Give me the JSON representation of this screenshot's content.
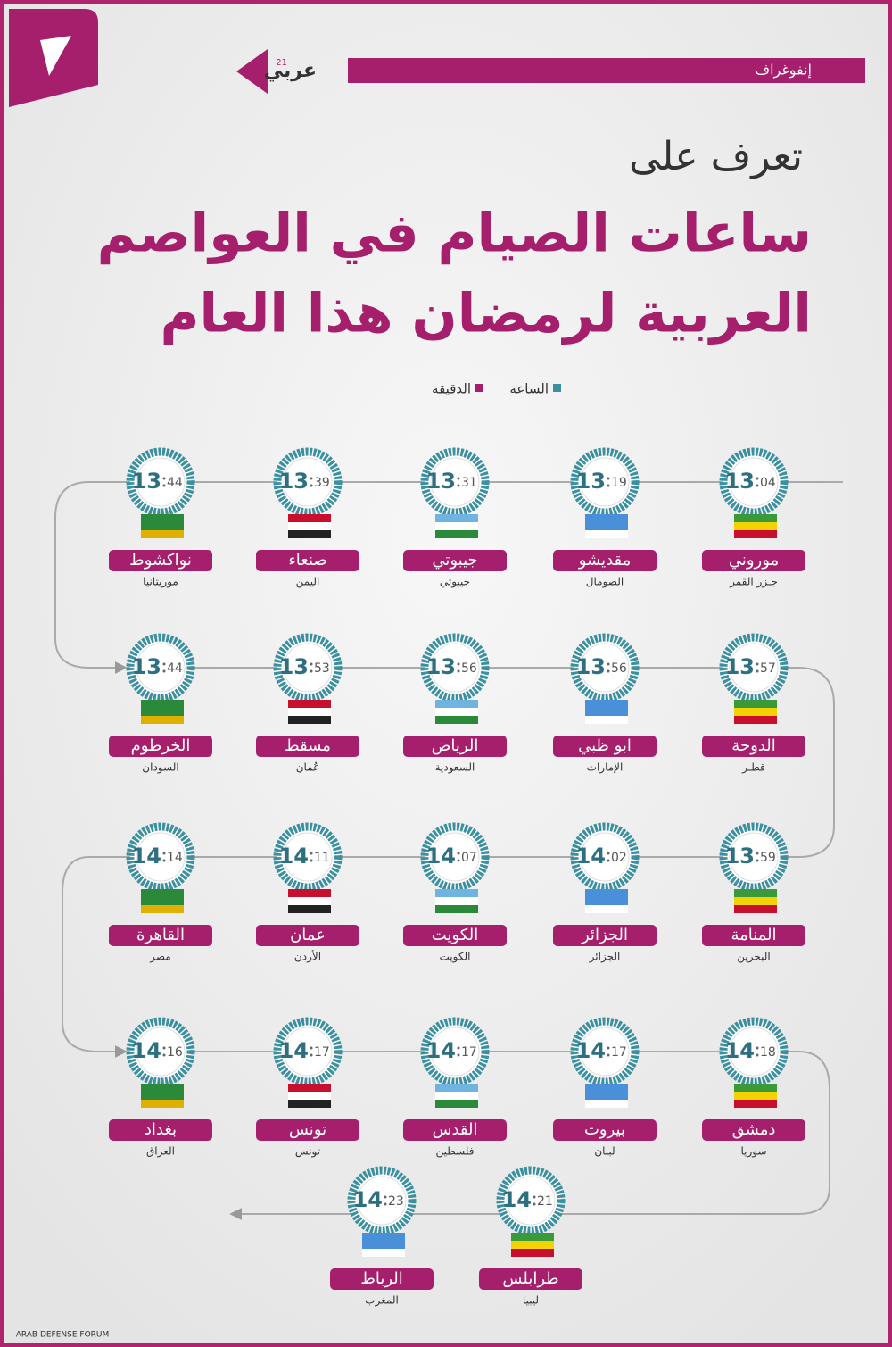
{
  "header": {
    "section": "إنفوغراف",
    "brand": "عربي",
    "brand_sup": "21"
  },
  "title": {
    "line1": "تعرف على",
    "line2": "ساعات الصيام في العواصم",
    "line3": "العربية لرمضان هذا العام"
  },
  "legend": {
    "hour": "الساعة",
    "minute": "الدقيقة"
  },
  "items": [
    {
      "city": "موروني",
      "country": "جـزر القمر",
      "hours": "13",
      "minutes": "04"
    },
    {
      "city": "مقديشو",
      "country": "الصومال",
      "hours": "13",
      "minutes": "19"
    },
    {
      "city": "جيبوتي",
      "country": "جيبوتي",
      "hours": "13",
      "minutes": "31"
    },
    {
      "city": "صنعاء",
      "country": "اليمن",
      "hours": "13",
      "minutes": "39"
    },
    {
      "city": "نواكشوط",
      "country": "موريتانيا",
      "hours": "13",
      "minutes": "44"
    },
    {
      "city": "الدوحة",
      "country": "قطـر",
      "hours": "13",
      "minutes": "57"
    },
    {
      "city": "ابو ظبي",
      "country": "الإمارات",
      "hours": "13",
      "minutes": "56"
    },
    {
      "city": "الرياض",
      "country": "السعودية",
      "hours": "13",
      "minutes": "56"
    },
    {
      "city": "مسقط",
      "country": "عُمان",
      "hours": "13",
      "minutes": "53"
    },
    {
      "city": "الخرطوم",
      "country": "السودان",
      "hours": "13",
      "minutes": "44"
    },
    {
      "city": "المنامة",
      "country": "البحرين",
      "hours": "13",
      "minutes": "59"
    },
    {
      "city": "الجزائر",
      "country": "الجزائر",
      "hours": "14",
      "minutes": "02"
    },
    {
      "city": "الكويت",
      "country": "الكويت",
      "hours": "14",
      "minutes": "07"
    },
    {
      "city": "عمان",
      "country": "الأردن",
      "hours": "14",
      "minutes": "11"
    },
    {
      "city": "القاهرة",
      "country": "مصر",
      "hours": "14",
      "minutes": "14"
    },
    {
      "city": "دمشق",
      "country": "سوريا",
      "hours": "14",
      "minutes": "18"
    },
    {
      "city": "بيروت",
      "country": "لبنان",
      "hours": "14",
      "minutes": "17"
    },
    {
      "city": "القدس",
      "country": "فلسطين",
      "hours": "14",
      "minutes": "17"
    },
    {
      "city": "تونس",
      "country": "تونس",
      "hours": "14",
      "minutes": "17"
    },
    {
      "city": "بغداد",
      "country": "العراق",
      "hours": "14",
      "minutes": "16"
    },
    {
      "city": "طرابلس",
      "country": "ليبيا",
      "hours": "14",
      "minutes": "21"
    },
    {
      "city": "الرباط",
      "country": "المغرب",
      "hours": "14",
      "minutes": "23"
    }
  ]
}
